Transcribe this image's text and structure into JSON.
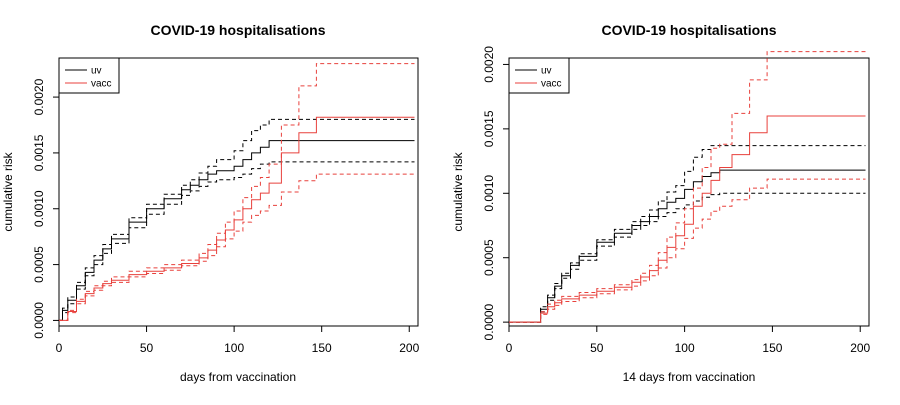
{
  "chart_data": [
    {
      "type": "line",
      "step": true,
      "title": "COVID-19 hospitalisations",
      "xlabel": "days from vaccination",
      "ylabel": "cumulative risk",
      "xlim": [
        0,
        205
      ],
      "ylim": [
        -5e-05,
        0.00235
      ],
      "xticks": [
        "0",
        "50",
        "100",
        "150",
        "200"
      ],
      "yticks": [
        "0.0000",
        "0.0005",
        "0.0010",
        "0.0015",
        "0.0020"
      ],
      "legend": {
        "placement": "top-left",
        "entries": [
          "uv",
          "vacc"
        ]
      },
      "series": [
        {
          "name": "uv",
          "role": "estimate",
          "color": "#000000",
          "dashed": false,
          "x": [
            0,
            2,
            5,
            10,
            15,
            20,
            25,
            30,
            40,
            50,
            60,
            70,
            75,
            80,
            85,
            90,
            100,
            105,
            110,
            115,
            120,
            203
          ],
          "y": [
            0,
            9e-05,
            0.00018,
            0.00031,
            0.00043,
            0.00054,
            0.00064,
            0.00073,
            0.00088,
            0.001,
            0.00109,
            0.00117,
            0.00121,
            0.00126,
            0.00131,
            0.00134,
            0.00138,
            0.00144,
            0.0015,
            0.00155,
            0.00161,
            0.00161
          ]
        },
        {
          "name": "uv",
          "role": "upper",
          "color": "#000000",
          "dashed": true,
          "x": [
            0,
            2,
            5,
            10,
            15,
            20,
            25,
            30,
            40,
            50,
            60,
            70,
            75,
            80,
            85,
            90,
            100,
            105,
            110,
            115,
            120,
            203
          ],
          "y": [
            0,
            0.00011,
            0.00021,
            0.00034,
            0.00047,
            0.00058,
            0.00068,
            0.00077,
            0.00092,
            0.00104,
            0.00113,
            0.00121,
            0.00126,
            0.00132,
            0.00138,
            0.00144,
            0.00152,
            0.00161,
            0.0017,
            0.00175,
            0.0018,
            0.0018
          ]
        },
        {
          "name": "uv",
          "role": "lower",
          "color": "#000000",
          "dashed": true,
          "x": [
            0,
            2,
            5,
            10,
            15,
            20,
            25,
            30,
            40,
            50,
            60,
            70,
            75,
            80,
            85,
            90,
            100,
            105,
            110,
            115,
            120,
            203
          ],
          "y": [
            0,
            7e-05,
            0.00015,
            0.00028,
            0.0004,
            0.0005,
            0.0006,
            0.00069,
            0.00083,
            0.00095,
            0.00104,
            0.00112,
            0.00116,
            0.0012,
            0.00124,
            0.00126,
            0.00128,
            0.00131,
            0.00136,
            0.0014,
            0.00142,
            0.00142
          ]
        },
        {
          "name": "vacc",
          "role": "estimate",
          "color": "#e8413c",
          "dashed": false,
          "x": [
            0,
            5,
            10,
            15,
            20,
            25,
            30,
            40,
            50,
            60,
            70,
            80,
            85,
            90,
            95,
            100,
            105,
            110,
            115,
            120,
            127,
            137,
            147,
            203
          ],
          "y": [
            0,
            8e-05,
            0.00017,
            0.00024,
            0.00029,
            0.00033,
            0.00036,
            0.00041,
            0.00044,
            0.00047,
            0.00051,
            0.00056,
            0.00063,
            0.00072,
            0.00081,
            0.0009,
            0.001,
            0.00108,
            0.00114,
            0.00123,
            0.0015,
            0.00168,
            0.00182,
            0.00182
          ]
        },
        {
          "name": "vacc",
          "role": "upper",
          "color": "#e8413c",
          "dashed": true,
          "x": [
            0,
            5,
            10,
            15,
            20,
            25,
            30,
            40,
            50,
            60,
            70,
            80,
            85,
            90,
            95,
            100,
            105,
            110,
            115,
            120,
            127,
            137,
            147,
            203
          ],
          "y": [
            0,
            9e-05,
            0.00019,
            0.00026,
            0.00031,
            0.00035,
            0.00039,
            0.00044,
            0.00047,
            0.0005,
            0.00054,
            0.0006,
            0.00068,
            0.00078,
            0.00088,
            0.00098,
            0.0011,
            0.0012,
            0.00128,
            0.0014,
            0.00175,
            0.0021,
            0.0023,
            0.0023
          ]
        },
        {
          "name": "vacc",
          "role": "lower",
          "color": "#e8413c",
          "dashed": true,
          "x": [
            0,
            5,
            10,
            15,
            20,
            25,
            30,
            40,
            50,
            60,
            70,
            80,
            85,
            90,
            95,
            100,
            105,
            110,
            115,
            120,
            127,
            137,
            147,
            203
          ],
          "y": [
            0,
            7e-05,
            0.00015,
            0.00022,
            0.00027,
            0.00031,
            0.00034,
            0.00039,
            0.00042,
            0.00045,
            0.00049,
            0.00053,
            0.00058,
            0.00066,
            0.00073,
            0.0008,
            0.00088,
            0.00094,
            0.00098,
            0.00103,
            0.00115,
            0.00125,
            0.00131,
            0.00131
          ]
        }
      ]
    },
    {
      "type": "line",
      "step": true,
      "title": "COVID-19 hospitalisations",
      "xlabel": "14 days from vaccination",
      "ylabel": "cumulative risk",
      "xlim": [
        0,
        205
      ],
      "ylim": [
        -3e-05,
        0.00205
      ],
      "xticks": [
        "0",
        "50",
        "100",
        "150",
        "200"
      ],
      "yticks": [
        "0.0000",
        "0.0005",
        "0.0010",
        "0.0015",
        "0.0020"
      ],
      "legend": {
        "placement": "top-left",
        "entries": [
          "uv",
          "vacc"
        ]
      },
      "series": [
        {
          "name": "uv",
          "role": "estimate",
          "color": "#000000",
          "dashed": false,
          "x": [
            0,
            14,
            18,
            22,
            26,
            30,
            35,
            40,
            50,
            60,
            70,
            75,
            80,
            85,
            90,
            95,
            100,
            105,
            110,
            115,
            120,
            203
          ],
          "y": [
            0,
            0,
            0.0001,
            0.00019,
            0.00028,
            0.00036,
            0.00044,
            0.00051,
            0.00062,
            0.00069,
            0.00075,
            0.00078,
            0.00082,
            0.00088,
            0.00093,
            0.00096,
            0.00103,
            0.00109,
            0.00113,
            0.00116,
            0.00118,
            0.00118
          ]
        },
        {
          "name": "uv",
          "role": "upper",
          "color": "#000000",
          "dashed": true,
          "x": [
            0,
            14,
            18,
            22,
            26,
            30,
            35,
            40,
            50,
            60,
            70,
            75,
            80,
            85,
            90,
            95,
            100,
            105,
            110,
            115,
            120,
            203
          ],
          "y": [
            0,
            0,
            0.00012,
            0.00021,
            0.0003,
            0.00038,
            0.00046,
            0.00053,
            0.00064,
            0.00072,
            0.00078,
            0.00082,
            0.00087,
            0.00094,
            0.00101,
            0.00106,
            0.00117,
            0.00128,
            0.00134,
            0.00137,
            0.00137,
            0.00137
          ]
        },
        {
          "name": "uv",
          "role": "lower",
          "color": "#000000",
          "dashed": true,
          "x": [
            0,
            14,
            18,
            22,
            26,
            30,
            35,
            40,
            50,
            60,
            70,
            75,
            80,
            85,
            90,
            95,
            100,
            105,
            110,
            115,
            120,
            203
          ],
          "y": [
            0,
            0,
            8e-05,
            0.00017,
            0.00026,
            0.00034,
            0.00041,
            0.00048,
            0.00059,
            0.00066,
            0.00072,
            0.00075,
            0.00078,
            0.00082,
            0.00085,
            0.00088,
            0.00091,
            0.00094,
            0.00097,
            0.00099,
            0.001,
            0.001
          ]
        },
        {
          "name": "vacc",
          "role": "estimate",
          "color": "#e8413c",
          "dashed": false,
          "x": [
            0,
            14,
            18,
            22,
            26,
            30,
            40,
            50,
            60,
            70,
            75,
            80,
            85,
            90,
            95,
            100,
            105,
            110,
            115,
            120,
            127,
            137,
            147,
            203
          ],
          "y": [
            0,
            0,
            7e-05,
            0.00012,
            0.00015,
            0.00018,
            0.00021,
            0.00024,
            0.00027,
            0.00031,
            0.00035,
            0.0004,
            0.00048,
            0.00058,
            0.00067,
            0.00076,
            0.0009,
            0.001,
            0.0011,
            0.0012,
            0.0013,
            0.00147,
            0.0016,
            0.0016
          ]
        },
        {
          "name": "vacc",
          "role": "upper",
          "color": "#e8413c",
          "dashed": true,
          "x": [
            0,
            14,
            18,
            22,
            26,
            30,
            40,
            50,
            60,
            70,
            75,
            80,
            85,
            90,
            95,
            100,
            105,
            110,
            115,
            120,
            127,
            137,
            147,
            203
          ],
          "y": [
            0,
            0,
            8e-05,
            0.00014,
            0.00017,
            0.0002,
            0.00023,
            0.00026,
            0.00029,
            0.00033,
            0.00038,
            0.00044,
            0.00054,
            0.00066,
            0.00077,
            0.00088,
            0.00104,
            0.0012,
            0.00135,
            0.00138,
            0.00162,
            0.00188,
            0.0021,
            0.0021
          ]
        },
        {
          "name": "vacc",
          "role": "lower",
          "color": "#e8413c",
          "dashed": true,
          "x": [
            0,
            14,
            18,
            22,
            26,
            30,
            40,
            50,
            60,
            70,
            75,
            80,
            85,
            90,
            95,
            100,
            105,
            110,
            115,
            120,
            127,
            137,
            147,
            203
          ],
          "y": [
            0,
            0,
            6e-05,
            0.0001,
            0.00013,
            0.00016,
            0.00019,
            0.00022,
            0.00025,
            0.00028,
            0.00032,
            0.00036,
            0.00042,
            0.0005,
            0.00057,
            0.00065,
            0.00073,
            0.0008,
            0.00086,
            0.0009,
            0.00095,
            0.00104,
            0.00111,
            0.00111
          ]
        }
      ]
    }
  ]
}
